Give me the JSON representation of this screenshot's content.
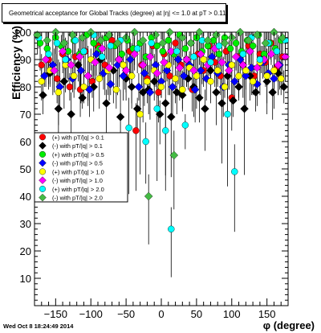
{
  "title": "Geometrical acceptance for Global Tracks (degree) at |η| <= 1.0 at pT > 0.11",
  "timestamp": "Wed Oct  8 18:24:49 2014",
  "chart_data": {
    "type": "scatter",
    "xlabel": "φ (degree)",
    "ylabel": "Efficiency (%)",
    "xlim": [
      -180,
      180
    ],
    "ylim": [
      0,
      100
    ],
    "x_ticks": [
      -150,
      -100,
      -50,
      0,
      50,
      100,
      150
    ],
    "y_ticks": [
      10,
      20,
      30,
      40,
      50,
      60,
      70,
      80,
      90,
      100
    ],
    "grid": false,
    "legend_position": "left-middle",
    "series": [
      {
        "name": "(+) with pT/|q| > 0.1",
        "color": "#ff0000",
        "marker": "circle",
        "x": [
          -170,
          -160,
          -148,
          -140,
          -130,
          -122,
          -115,
          -108,
          -98,
          -90,
          -80,
          -70,
          -60,
          -52,
          -45,
          -36,
          -28,
          -20,
          -12,
          -4,
          4,
          12,
          20,
          28,
          36,
          44,
          52,
          60,
          68,
          76,
          84,
          92,
          100,
          108,
          116,
          124,
          132,
          140,
          148,
          156,
          164,
          172
        ],
        "y": [
          88,
          90,
          83,
          92,
          80,
          91,
          79,
          93,
          82,
          95,
          88,
          97,
          90,
          84,
          93,
          64,
          88,
          83,
          95,
          78,
          92,
          84,
          96,
          88,
          90,
          79,
          92,
          86,
          95,
          89,
          84,
          93,
          76,
          91,
          88,
          95,
          84,
          92,
          89,
          96,
          87,
          91
        ]
      },
      {
        "name": "(-) with pT/|q| > 0.1",
        "color": "#000000",
        "marker": "diamond",
        "x": [
          -168,
          -158,
          -146,
          -138,
          -128,
          -118,
          -112,
          -104,
          -96,
          -86,
          -78,
          -68,
          -58,
          -50,
          -42,
          -34,
          -26,
          -18,
          -10,
          -2,
          6,
          14,
          22,
          30,
          38,
          46,
          54,
          62,
          70,
          78,
          86,
          94,
          102,
          110,
          118,
          126,
          134,
          142,
          150,
          158,
          166,
          174
        ],
        "y": [
          77,
          85,
          72,
          82,
          70,
          88,
          76,
          84,
          80,
          90,
          74,
          86,
          69,
          83,
          80,
          72,
          78,
          79,
          82,
          70,
          74,
          69,
          78,
          77,
          83,
          80,
          76,
          72,
          86,
          78,
          74,
          84,
          75,
          80,
          72,
          84,
          78,
          90,
          82,
          78,
          85,
          80
        ]
      },
      {
        "name": "(+) with pT/|q| > 0.5",
        "color": "#00ee00",
        "marker": "circle",
        "x": [
          -172,
          -162,
          -150,
          -142,
          -132,
          -124,
          -116,
          -106,
          -96,
          -88,
          -78,
          -66,
          -56,
          -48,
          -40,
          -30,
          -22,
          -14,
          -6,
          2,
          10,
          18,
          26,
          34,
          42,
          50,
          58,
          66,
          74,
          82,
          90,
          98,
          106,
          114,
          122,
          130,
          138,
          146,
          154,
          162,
          170
        ],
        "y": [
          96,
          94,
          98,
          95,
          93,
          97,
          92,
          99,
          96,
          94,
          98,
          95,
          92,
          97,
          94,
          96,
          91,
          98,
          95,
          93,
          97,
          92,
          99,
          94,
          96,
          98,
          93,
          95,
          97,
          92,
          98,
          94,
          96,
          93,
          97,
          95,
          99,
          92,
          96,
          94,
          97
        ]
      },
      {
        "name": "(-) with pT/|q| > 0.5",
        "color": "#0000ff",
        "marker": "diamond",
        "x": [
          -166,
          -154,
          -144,
          -134,
          -126,
          -114,
          -102,
          -92,
          -82,
          -72,
          -62,
          -54,
          -44,
          -32,
          -24,
          -16,
          -8,
          0,
          8,
          16,
          24,
          32,
          40,
          48,
          56,
          64,
          72,
          80,
          88,
          96,
          104,
          112,
          120,
          128,
          136,
          144,
          152,
          160,
          168
        ],
        "y": [
          84,
          88,
          80,
          90,
          83,
          86,
          79,
          92,
          85,
          81,
          88,
          84,
          90,
          80,
          85,
          78,
          88,
          82,
          86,
          80,
          90,
          84,
          88,
          79,
          86,
          83,
          91,
          85,
          80,
          88,
          82,
          90,
          84,
          87,
          81,
          89,
          85,
          83,
          88
        ]
      },
      {
        "name": "(+) with pT/|q| > 1.0",
        "color": "#ffff00",
        "marker": "circle",
        "x": [
          -170,
          -158,
          -146,
          -136,
          -124,
          -110,
          -100,
          -88,
          -76,
          -64,
          -54,
          -42,
          -30,
          -20,
          -10,
          0,
          10,
          20,
          30,
          40,
          50,
          60,
          70,
          80,
          90,
          100,
          110,
          120,
          130,
          140,
          150,
          160,
          170
        ],
        "y": [
          82,
          86,
          78,
          88,
          84,
          80,
          90,
          83,
          86,
          79,
          88,
          84,
          70,
          82,
          86,
          80,
          88,
          83,
          79,
          87,
          84,
          90,
          82,
          86,
          80,
          88,
          84,
          86,
          82,
          89,
          84,
          86,
          83
        ]
      },
      {
        "name": "(-) with pT/|q| > 1.0",
        "color": "#ff00ff",
        "marker": "diamond",
        "x": [
          -164,
          -152,
          -140,
          -128,
          -116,
          -104,
          -94,
          -84,
          -74,
          -60,
          -50,
          -38,
          -26,
          -16,
          -6,
          4,
          14,
          26,
          36,
          46,
          56,
          66,
          76,
          86,
          96,
          106,
          116,
          126,
          136,
          146,
          156,
          166,
          176
        ],
        "y": [
          90,
          86,
          93,
          88,
          91,
          84,
          89,
          94,
          87,
          90,
          86,
          92,
          88,
          91,
          85,
          89,
          93,
          87,
          90,
          86,
          92,
          88,
          94,
          89,
          86,
          91,
          88,
          93,
          87,
          90,
          92,
          88,
          91
        ]
      },
      {
        "name": "(+) with pT/|q| > 2.0",
        "color": "#00ffff",
        "marker": "circle",
        "x": [
          -174,
          -160,
          -148,
          -136,
          -122,
          -110,
          -96,
          -84,
          -72,
          -58,
          -46,
          -34,
          -22,
          -14,
          -6,
          6,
          14,
          22,
          34,
          46,
          58,
          70,
          82,
          94,
          104,
          116,
          128,
          140,
          152,
          164,
          176
        ],
        "y": [
          98,
          92,
          96,
          90,
          97,
          93,
          99,
          91,
          95,
          97,
          65,
          94,
          60,
          96,
          72,
          64,
          28,
          93,
          66,
          91,
          97,
          89,
          95,
          70,
          49,
          92,
          98,
          90,
          96,
          93,
          97
        ]
      },
      {
        "name": "(-) with pT/|q| > 2.0",
        "color": "#44bb44",
        "marker": "diamond",
        "x": [
          -176,
          -162,
          -150,
          -138,
          -126,
          -112,
          -100,
          -86,
          -74,
          -62,
          -50,
          -38,
          -26,
          -18,
          -8,
          2,
          12,
          18,
          30,
          42,
          54,
          66,
          78,
          90,
          100,
          112,
          124,
          136,
          148,
          160,
          172
        ],
        "y": [
          99,
          97,
          100,
          96,
          99,
          98,
          100,
          97,
          99,
          96,
          98,
          100,
          97,
          40,
          99,
          96,
          100,
          55,
          98,
          96,
          100,
          97,
          99,
          96,
          98,
          100,
          97,
          99,
          96,
          100,
          98
        ]
      }
    ]
  }
}
